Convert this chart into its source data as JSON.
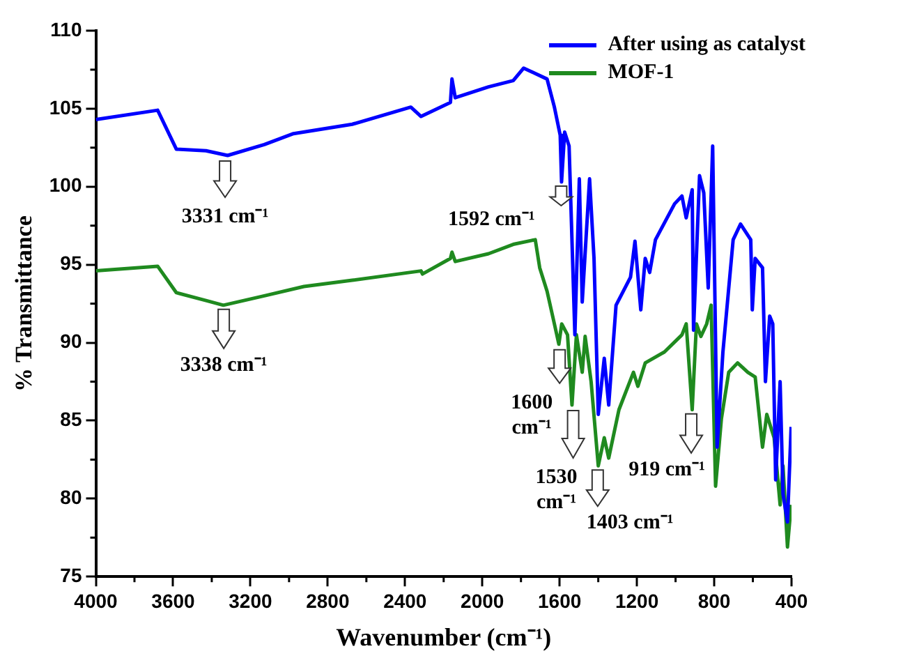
{
  "chart_data": {
    "type": "line",
    "xlabel": "Wavenumber (cm⁻¹)",
    "ylabel": "% Transmittance",
    "xlim": [
      4000,
      400
    ],
    "xticks": [
      4000,
      3600,
      3200,
      2800,
      2400,
      2000,
      1600,
      1200,
      800,
      400
    ],
    "ylim": [
      75,
      110
    ],
    "yticks": [
      75,
      80,
      85,
      90,
      95,
      100,
      105,
      110
    ],
    "grid": false,
    "legend": "top right",
    "marker": "none",
    "line_style": "solid",
    "series": [
      {
        "name": "After using as catalyst",
        "color": "#0000ff",
        "x": [
          4000,
          3680,
          3583,
          3430,
          3318,
          3128,
          2977,
          2673,
          2370,
          2317,
          2165,
          2157,
          2140,
          1968,
          1840,
          1786,
          1665,
          1627,
          1597,
          1590,
          1574,
          1551,
          1521,
          1498,
          1483,
          1445,
          1422,
          1400,
          1369,
          1346,
          1308,
          1233,
          1210,
          1180,
          1157,
          1134,
          1104,
          1005,
          967,
          945,
          914,
          907,
          876,
          854,
          831,
          808,
          785,
          755,
          702,
          664,
          611,
          603,
          588,
          550,
          535,
          513,
          497,
          482,
          459,
          444,
          421,
          402
        ],
        "values": [
          104.3,
          104.9,
          102.4,
          102.3,
          102.0,
          102.7,
          103.4,
          104.0,
          105.1,
          104.5,
          105.4,
          106.9,
          105.7,
          106.4,
          106.8,
          107.6,
          106.9,
          105.1,
          103.3,
          100.3,
          103.5,
          102.6,
          90.5,
          100.5,
          92.6,
          100.5,
          95.4,
          85.4,
          89.0,
          86.0,
          92.4,
          94.2,
          96.5,
          92.1,
          95.4,
          94.5,
          96.6,
          98.9,
          99.4,
          98.0,
          99.8,
          90.8,
          100.7,
          99.6,
          93.5,
          102.6,
          83.3,
          89.4,
          96.6,
          97.6,
          96.6,
          92.1,
          95.4,
          94.8,
          87.5,
          91.7,
          91.2,
          81.2,
          87.5,
          80.3,
          78.5,
          84.6
        ]
      },
      {
        "name": "MOF-1",
        "color": "#1f8a1f",
        "x": [
          4000,
          3680,
          3583,
          3430,
          3340,
          3128,
          2923,
          2673,
          2317,
          2310,
          2165,
          2157,
          2140,
          1968,
          1840,
          1726,
          1703,
          1665,
          1627,
          1604,
          1589,
          1559,
          1536,
          1513,
          1483,
          1468,
          1437,
          1400,
          1369,
          1346,
          1293,
          1218,
          1195,
          1157,
          1058,
          967,
          945,
          914,
          892,
          869,
          839,
          816,
          793,
          763,
          725,
          679,
          626,
          588,
          550,
          528,
          490,
          459,
          444,
          421,
          402
        ],
        "values": [
          94.6,
          94.9,
          93.2,
          92.7,
          92.4,
          93.0,
          93.6,
          94.0,
          94.6,
          94.4,
          95.4,
          95.8,
          95.2,
          95.7,
          96.3,
          96.6,
          94.8,
          93.3,
          91.2,
          89.9,
          91.2,
          90.5,
          86.0,
          90.5,
          88.1,
          90.4,
          87.5,
          82.1,
          83.9,
          82.6,
          85.7,
          88.1,
          87.2,
          88.7,
          89.4,
          90.5,
          91.2,
          85.7,
          91.2,
          90.4,
          91.2,
          92.4,
          80.8,
          85.1,
          88.1,
          88.7,
          88.1,
          87.8,
          83.3,
          85.4,
          83.9,
          79.6,
          82.1,
          76.9,
          79.6
        ]
      }
    ],
    "annotations": [
      {
        "text": "3331 cm⁻¹",
        "x": 3331,
        "y": 102.0
      },
      {
        "text": "1592 cm⁻¹",
        "x": 1592,
        "y": 100.3
      },
      {
        "text": "3338 cm⁻¹",
        "x": 3338,
        "y": 92.4
      },
      {
        "text": "1600 cm⁻¹",
        "x": 1600,
        "y": 89.9
      },
      {
        "text": "1530 cm⁻¹",
        "x": 1530,
        "y": 86.0
      },
      {
        "text": "1403 cm⁻¹",
        "x": 1403,
        "y": 82.1
      },
      {
        "text": "919 cm⁻¹",
        "x": 919,
        "y": 85.7
      }
    ]
  }
}
